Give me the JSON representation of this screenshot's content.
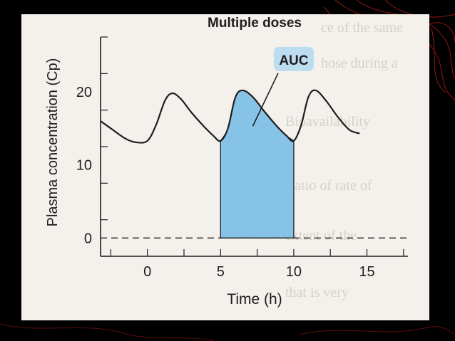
{
  "chart_data": {
    "type": "line",
    "title": "Multiple doses",
    "xlabel": "Time (h)",
    "ylabel": "Plasma concentration (Cp)",
    "xlim": [
      -3.2,
      17.8
    ],
    "ylim": [
      -2.5,
      27.5
    ],
    "x_ticks": [
      0,
      5,
      10,
      15
    ],
    "y_ticks": [
      0,
      10,
      20
    ],
    "grid": false,
    "series": [
      {
        "values_x": [
          -3.2,
          -2.5,
          -1.5,
          -0.8,
          0,
          0.6,
          1.2,
          1.7,
          2.3,
          3.0,
          3.8,
          4.5,
          5.0,
          5.5,
          6.0,
          6.5,
          7.2,
          8.0,
          8.8,
          9.5,
          10.0,
          10.5,
          11.0,
          11.5,
          12.2,
          13.0,
          13.8,
          14.5
        ],
        "values_y": [
          16.0,
          15.0,
          13.6,
          13.1,
          13.3,
          15.5,
          18.8,
          19.8,
          19.0,
          17.2,
          15.4,
          14.0,
          13.3,
          15.0,
          19.2,
          20.2,
          19.3,
          17.3,
          15.4,
          14.0,
          13.3,
          15.4,
          19.3,
          20.2,
          18.8,
          16.6,
          14.8,
          14.3
        ]
      }
    ],
    "zero_line": {
      "y": 0,
      "style": "dashed",
      "x_range": [
        -3.2,
        17.8
      ]
    },
    "auc_region": {
      "x_start": 5,
      "x_end": 10,
      "color": "#87c3e6"
    },
    "annotations": [
      {
        "text": "AUC",
        "x": 10,
        "y": 24.3,
        "arrow_to": [
          7.2,
          15.3
        ]
      }
    ],
    "colors": {
      "curve": "#1e1e1e",
      "fill": "#87c3e6",
      "label_box": "#bcdcef"
    }
  }
}
